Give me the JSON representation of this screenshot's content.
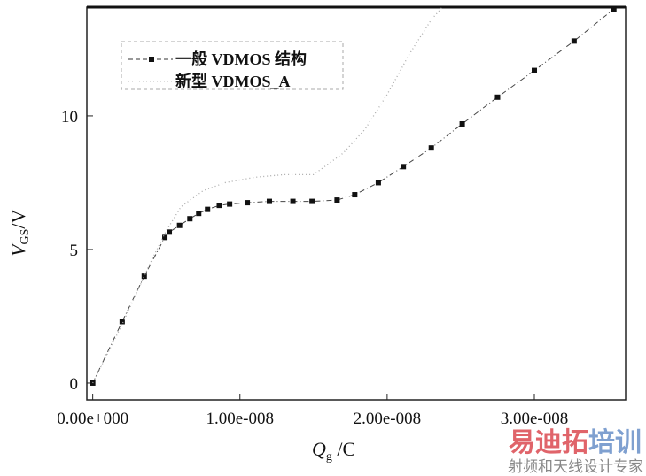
{
  "chart_data": {
    "type": "scatter",
    "title": "",
    "xlabel": "Q_g /C",
    "xlabel_main": "Q",
    "xlabel_sub": "g",
    "xlabel_unit": " /C",
    "ylabel": "V_GS /V",
    "ylabel_main": "V",
    "ylabel_sub": "GS",
    "ylabel_unit": "/V",
    "xlim": [
      -4e-10,
      3.62e-08
    ],
    "ylim": [
      -0.63,
      14.07
    ],
    "x_ticks": [
      0,
      1e-08,
      2e-08,
      3e-08
    ],
    "x_tick_labels": [
      "0.00e+000",
      "1.00e-008",
      "2.00e-008",
      "3.00e-008"
    ],
    "y_ticks": [
      0,
      5,
      10
    ],
    "y_tick_labels": [
      "0",
      "5",
      "10"
    ],
    "grid": false,
    "legend_position": "top-left",
    "series": [
      {
        "name": "一般 VDMOS 结构",
        "style": "dash-dot with square markers",
        "x": [
          0,
          2e-09,
          3.5e-09,
          4.9e-09,
          5.2e-09,
          5.9e-09,
          6.6e-09,
          7.2e-09,
          7.8e-09,
          8.6e-09,
          9.3e-09,
          1.05e-08,
          1.2e-08,
          1.36e-08,
          1.49e-08,
          1.66e-08,
          1.78e-08,
          1.94e-08,
          2.11e-08,
          2.3e-08,
          2.51e-08,
          2.75e-08,
          3e-08,
          3.27e-08,
          3.54e-08
        ],
        "y": [
          0,
          2.3,
          4.0,
          5.45,
          5.65,
          5.9,
          6.15,
          6.35,
          6.5,
          6.65,
          6.7,
          6.75,
          6.8,
          6.8,
          6.8,
          6.85,
          7.05,
          7.5,
          8.1,
          8.8,
          9.7,
          10.7,
          11.7,
          12.8,
          14.0
        ]
      },
      {
        "name": "新型 VDMOS_A",
        "style": "dotted",
        "x": [
          0,
          1e-09,
          2e-09,
          3e-09,
          4e-09,
          5e-09,
          6e-09,
          7.5e-09,
          9e-09,
          1.1e-08,
          1.3e-08,
          1.5e-08,
          1.7e-08,
          1.85e-08,
          2e-08,
          2.15e-08,
          2.3e-08,
          2.38e-08
        ],
        "y": [
          0,
          1.1,
          2.2,
          3.4,
          4.6,
          5.7,
          6.6,
          7.2,
          7.5,
          7.7,
          7.8,
          7.8,
          8.6,
          9.5,
          10.8,
          12.3,
          13.6,
          14.1
        ]
      }
    ]
  },
  "watermark": {
    "line1a": "易迪拓",
    "line1b": "培训",
    "line2": "射频和天线设计专家"
  }
}
